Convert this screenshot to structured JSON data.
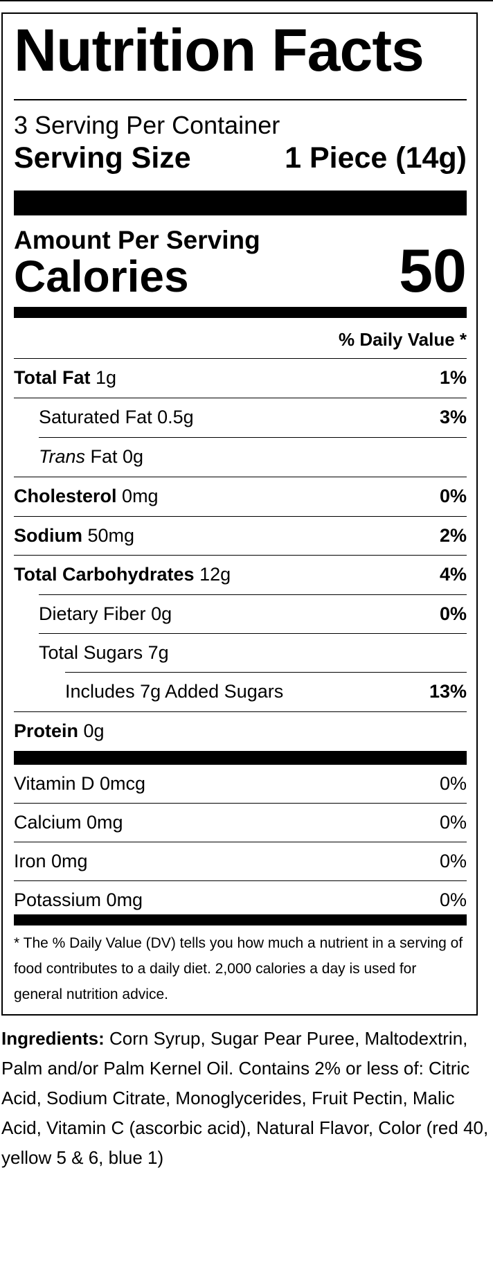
{
  "label": {
    "title": "Nutrition Facts",
    "servings_per_container": "3 Serving Per Container",
    "serving_size_label": "Serving Size",
    "serving_size_value": "1 Piece (14g)",
    "amount_per_serving": "Amount Per Serving",
    "calories_label": "Calories",
    "calories_value": "50",
    "daily_value_header": "% Daily Value *"
  },
  "nutrients": [
    {
      "name": "Total Fat",
      "amount": "1g",
      "dv": "1%"
    },
    {
      "name": "Saturated Fat",
      "amount": "0.5g",
      "dv": "3%"
    },
    {
      "name": "Trans",
      "amount": "Fat 0g",
      "dv": ""
    },
    {
      "name": "Cholesterol",
      "amount": "0mg",
      "dv": "0%"
    },
    {
      "name": "Sodium",
      "amount": "50mg",
      "dv": "2%"
    },
    {
      "name": "Total Carbohydrates",
      "amount": "12g",
      "dv": "4%"
    },
    {
      "name": "Dietary Fiber",
      "amount": "0g",
      "dv": "0%"
    },
    {
      "name": "Total Sugars",
      "amount": "7g",
      "dv": ""
    },
    {
      "name": "Includes 7g Added Sugars",
      "amount": "",
      "dv": "13%"
    },
    {
      "name": "Protein",
      "amount": "0g",
      "dv": ""
    }
  ],
  "vitamins": [
    {
      "name": "Vitamin D 0mcg",
      "dv": "0%"
    },
    {
      "name": "Calcium 0mg",
      "dv": "0%"
    },
    {
      "name": "Iron 0mg",
      "dv": "0%"
    },
    {
      "name": "Potassium 0mg",
      "dv": "0%"
    }
  ],
  "footnote": "* The % Daily Value (DV) tells you how much a nutrient in a serving of food contributes to a daily diet. 2,000 calories a day is used for general nutrition advice.",
  "ingredients": {
    "label": "Ingredients:",
    "text": " Corn Syrup, Sugar Pear Puree, Maltodextrin, Palm and/or Palm Kernel Oil. Contains 2% or less of: Citric Acid, Sodium Citrate, Monoglycerides, Fruit Pectin, Malic Acid, Vitamin C (ascorbic acid), Natural Flavor, Color (red 40, yellow 5 & 6, blue 1)"
  }
}
